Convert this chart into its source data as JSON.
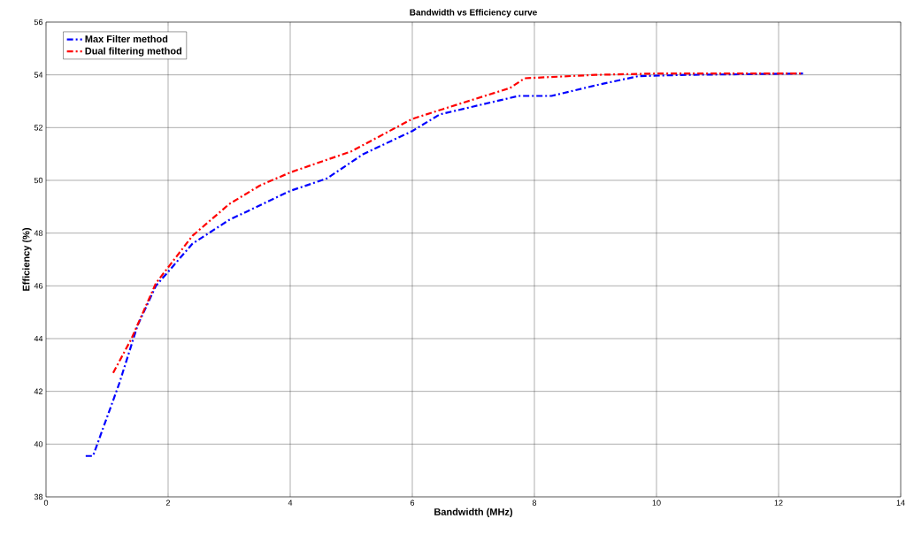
{
  "chart_data": {
    "type": "line",
    "title": "Bandwidth vs Efficiency curve",
    "xlabel": "Bandwidth (MHz)",
    "ylabel": "Efficiency (%)",
    "xlim": [
      0,
      14
    ],
    "ylim": [
      38,
      56
    ],
    "xticks": [
      0,
      2,
      4,
      6,
      8,
      10,
      12,
      14
    ],
    "yticks": [
      38,
      40,
      42,
      44,
      46,
      48,
      50,
      52,
      54,
      56
    ],
    "grid": true,
    "legend": "top left",
    "line_style": "dashdot",
    "series": [
      {
        "name": "Max Filter method",
        "color": "#0000ff",
        "x": [
          0.65,
          0.77,
          1.2,
          1.5,
          1.8,
          2.1,
          2.4,
          3.0,
          4.0,
          4.6,
          5.2,
          6.0,
          6.45,
          7.0,
          7.74,
          8.28,
          9.0,
          9.7,
          10.5,
          12.4
        ],
        "values": [
          39.55,
          39.55,
          42.3,
          44.5,
          46.0,
          46.8,
          47.6,
          48.5,
          49.6,
          50.07,
          51.0,
          51.87,
          52.5,
          52.8,
          53.2,
          53.2,
          53.6,
          53.95,
          54.0,
          54.05
        ]
      },
      {
        "name": "Dual filtering method",
        "color": "#ff0000",
        "x": [
          1.1,
          1.4,
          1.8,
          2.4,
          3.0,
          3.5,
          4.0,
          5.0,
          6.0,
          6.5,
          7.6,
          7.84,
          9.0,
          10.0,
          12.4
        ],
        "values": [
          42.7,
          44.0,
          46.1,
          47.9,
          49.1,
          49.8,
          50.3,
          51.1,
          52.33,
          52.7,
          53.5,
          53.87,
          54.0,
          54.05,
          54.05
        ]
      }
    ]
  }
}
